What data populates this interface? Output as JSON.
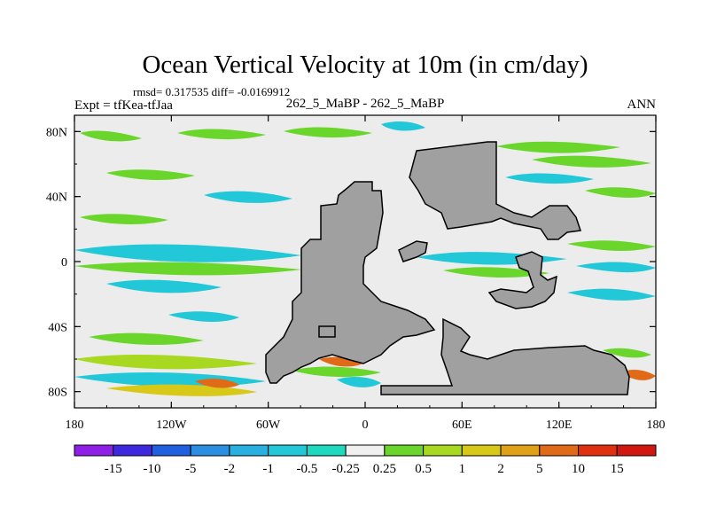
{
  "chart_data": {
    "type": "heatmap",
    "title": "Ocean Vertical Velocity at 10m (in cm/day)",
    "stats_line": "rmsd= 0.317535 diff= -0.0169912",
    "left_label": "Expt = tfKea-tfJaa",
    "center_label": "262_5_MaBP - 262_5_MaBP",
    "right_label": "ANN",
    "x_ticks": [
      "180",
      "120W",
      "60W",
      "0",
      "60E",
      "120E",
      "180"
    ],
    "x_tick_values": [
      -180,
      -120,
      -60,
      0,
      60,
      120,
      180
    ],
    "y_ticks": [
      "80N",
      "40N",
      "0",
      "40S",
      "80S"
    ],
    "y_tick_values": [
      80,
      40,
      0,
      -40,
      -80
    ],
    "xlim": [
      -180,
      180
    ],
    "ylim": [
      -90,
      90
    ],
    "colorbar": {
      "labels": [
        "-15",
        "-10",
        "-5",
        "-2",
        "-1",
        "-0.5",
        "-0.25",
        "0.25",
        "0.5",
        "1",
        "2",
        "5",
        "10",
        "15"
      ],
      "colors": [
        "#8f1ee6",
        "#3d28e0",
        "#1f5fe0",
        "#2a8fe0",
        "#28b0e0",
        "#22c8d8",
        "#1ed8c0",
        "#f0f0f0",
        "#6ad62c",
        "#a8d820",
        "#d8c818",
        "#e0a018",
        "#e06a18",
        "#e03010",
        "#d01810"
      ]
    },
    "land_color": "#a0a0a0",
    "background_color": "#ececec"
  }
}
